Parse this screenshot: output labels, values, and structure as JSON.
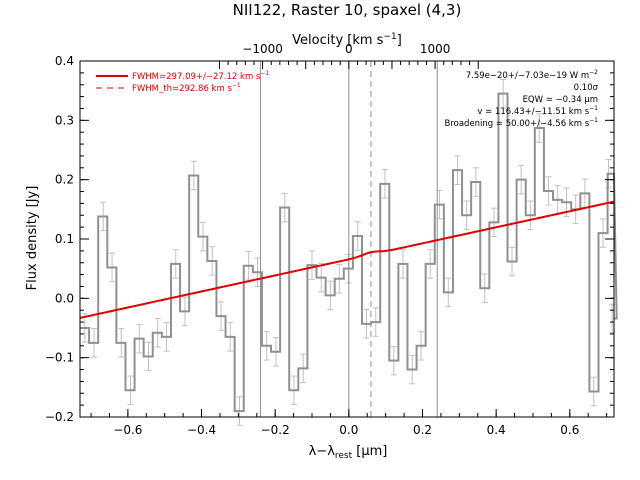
{
  "chart_data": {
    "type": "line",
    "title": "NII122, Raster 10, spaxel (4,3)",
    "xlabel_main": "λ−λ",
    "xlabel_sub": "rest",
    "xlabel_unit": " [μm]",
    "ylabel": "Flux density [Jy]",
    "top_axis_label": "Velocity [km s",
    "top_axis_label_sup": "−1",
    "top_axis_label_end": "]",
    "xlim": [
      -0.73,
      0.72
    ],
    "ylim": [
      -0.2,
      0.4
    ],
    "x_ticks": [
      -0.6,
      -0.4,
      -0.2,
      0.0,
      0.2,
      0.4,
      0.6
    ],
    "x_tick_labels": [
      "−0.6",
      "−0.4",
      "−0.2",
      "0.0",
      "0.2",
      "0.4",
      "0.6"
    ],
    "y_ticks": [
      -0.2,
      -0.1,
      0.0,
      0.1,
      0.2,
      0.3,
      0.4
    ],
    "y_tick_labels": [
      "−0.2",
      "−0.1",
      "0.0",
      "0.1",
      "0.2",
      "0.3",
      "0.4"
    ],
    "top_ticks_velocity": [
      -1000,
      0,
      1000
    ],
    "top_tick_labels": [
      "−1000",
      "0",
      "1000"
    ],
    "velocity_per_micron": 4270,
    "bin_width": 0.0247,
    "x_start": -0.73,
    "flux": [
      -0.05,
      -0.075,
      0.138,
      0.052,
      -0.075,
      -0.155,
      -0.068,
      -0.098,
      -0.058,
      -0.065,
      0.058,
      -0.022,
      0.207,
      0.104,
      0.063,
      -0.03,
      -0.065,
      -0.19,
      0.055,
      0.044,
      -0.08,
      -0.09,
      0.153,
      -0.155,
      -0.118,
      0.056,
      0.035,
      0.005,
      0.033,
      0.05,
      0.105,
      -0.043,
      -0.04,
      0.193,
      -0.105,
      0.058,
      -0.12,
      -0.08,
      0.058,
      0.158,
      0.01,
      0.216,
      0.14,
      0.196,
      0.017,
      0.128,
      0.345,
      0.062,
      0.2,
      0.14,
      0.287,
      0.181,
      0.166,
      0.162,
      0.15,
      0.177,
      -0.157,
      0.11,
      0.21,
      -0.034
    ],
    "err_x": [
      -0.717,
      -0.692,
      -0.667,
      -0.643,
      -0.618,
      -0.593,
      -0.569,
      -0.544,
      -0.519,
      -0.495,
      -0.47,
      -0.445,
      -0.421,
      -0.396,
      -0.371,
      -0.347,
      -0.322,
      -0.297,
      -0.272,
      -0.248,
      -0.223,
      -0.198,
      -0.174,
      -0.149,
      -0.124,
      -0.1,
      -0.075,
      -0.05,
      -0.026,
      -0.001,
      0.024,
      0.048,
      0.073,
      0.098,
      0.122,
      0.147,
      0.172,
      0.196,
      0.221,
      0.246,
      0.27,
      0.295,
      0.32,
      0.345,
      0.369,
      0.394,
      0.419,
      0.443,
      0.468,
      0.493,
      0.517,
      0.542,
      0.567,
      0.591,
      0.616,
      0.641,
      0.665,
      0.69,
      0.705,
      0.715
    ],
    "err_size": 0.024,
    "fit_line": {
      "x": [
        -0.73,
        0.72
      ],
      "y": [
        -0.033,
        0.163
      ],
      "color": "#e00000"
    },
    "fit_bump_x": 0.06,
    "fit_bump_h": 0.004,
    "vlines_solid": [
      -0.24,
      0.0,
      0.24
    ],
    "vline_dashed": 0.06,
    "legend": [
      {
        "label": "FWHM=297.09+/−27.12 km s",
        "sup": "−1",
        "style": "solid"
      },
      {
        "label": "FWHM_th=292.86 km s",
        "sup": "−1",
        "style": "dashed"
      }
    ],
    "annotations": [
      {
        "text": "7.59e−20+/−7.03e−19 W m",
        "sup": "−2"
      },
      {
        "text": "0.10σ",
        "sup": ""
      },
      {
        "text": "EQW = −0.34 μm",
        "sup": ""
      },
      {
        "text": "v = 116.43+/−11.51 km s",
        "sup": "−1"
      },
      {
        "text": "Broadening = 50.00+/−4.56 km s",
        "sup": "−1"
      }
    ],
    "colors": {
      "spectrum": "#909090",
      "errorbar": "#c0c0c0",
      "fit": "#e00000",
      "frame": "#000000",
      "vline": "#909090"
    }
  }
}
